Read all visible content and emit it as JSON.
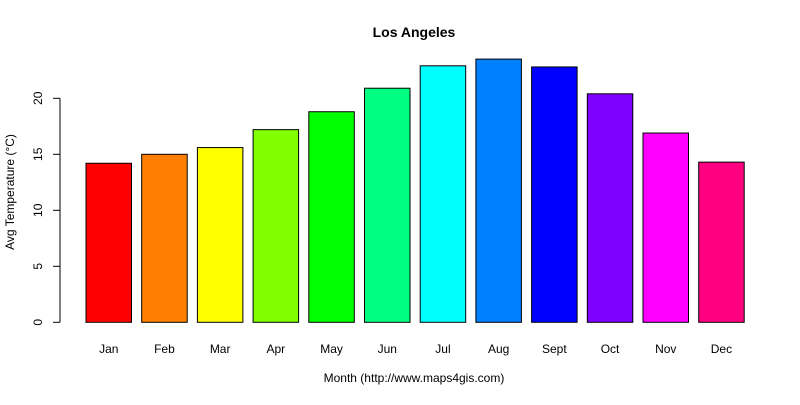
{
  "chart_data": {
    "type": "bar",
    "title": "Los Angeles",
    "xlabel": "Month (http://www.maps4gis.com)",
    "ylabel": "Avg Temperature (°C)",
    "categories": [
      "Jan",
      "Feb",
      "Mar",
      "Apr",
      "May",
      "Jun",
      "Jul",
      "Aug",
      "Sept",
      "Oct",
      "Nov",
      "Dec"
    ],
    "values": [
      14.2,
      15.0,
      15.6,
      17.2,
      18.8,
      20.9,
      22.9,
      23.5,
      22.8,
      20.4,
      16.9,
      14.3
    ],
    "colors": [
      "#FF0000",
      "#FF8000",
      "#FFFF00",
      "#80FF00",
      "#00FF00",
      "#00FF80",
      "#00FFFF",
      "#0080FF",
      "#0000FF",
      "#8000FF",
      "#FF00FF",
      "#FF0080"
    ],
    "yticks": [
      "0",
      "5",
      "10",
      "15",
      "20"
    ],
    "ylim": [
      0,
      23.5
    ],
    "grid": false,
    "legend": "none"
  }
}
